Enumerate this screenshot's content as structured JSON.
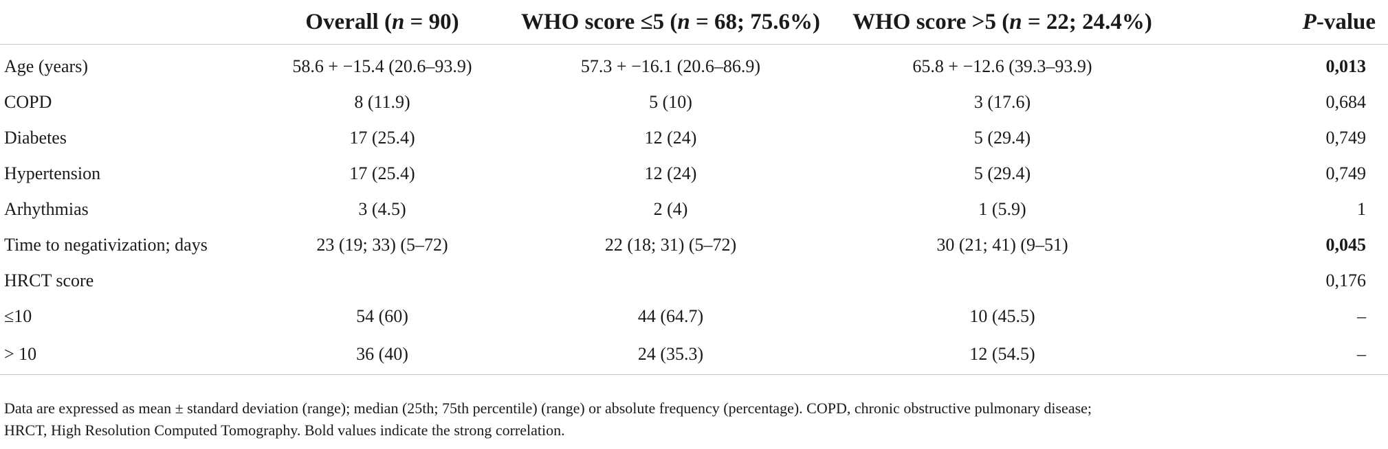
{
  "table": {
    "headers": [
      {
        "pre": "",
        "it": "",
        "post": ""
      },
      {
        "pre": "Overall (",
        "it": "n",
        "post": " = 90)"
      },
      {
        "pre": "WHO score ≤5 (",
        "it": "n",
        "post": " = 68; 75.6%)"
      },
      {
        "pre": "WHO score >5 (",
        "it": "n",
        "post": " = 22; 24.4%)"
      },
      {
        "pre": "",
        "it": "P",
        "post": "-value"
      }
    ],
    "rows": [
      {
        "label": "Age (years)",
        "overall": "58.6 + −15.4 (20.6–93.9)",
        "who_le5": "57.3 + −16.1 (20.6–86.9)",
        "who_gt5": "65.8 + −12.6 (39.3–93.9)",
        "p": "0,013",
        "bold": true
      },
      {
        "label": "COPD",
        "overall": "8 (11.9)",
        "who_le5": "5 (10)",
        "who_gt5": "3 (17.6)",
        "p": "0,684",
        "bold": false
      },
      {
        "label": "Diabetes",
        "overall": "17 (25.4)",
        "who_le5": "12 (24)",
        "who_gt5": "5 (29.4)",
        "p": "0,749",
        "bold": false
      },
      {
        "label": "Hypertension",
        "overall": "17 (25.4)",
        "who_le5": "12 (24)",
        "who_gt5": "5 (29.4)",
        "p": "0,749",
        "bold": false
      },
      {
        "label": "Arhythmias",
        "overall": "3 (4.5)",
        "who_le5": "2 (4)",
        "who_gt5": "1 (5.9)",
        "p": "1",
        "bold": false
      },
      {
        "label": "Time to negativization; days",
        "overall": "23 (19; 33) (5–72)",
        "who_le5": "22 (18; 31) (5–72)",
        "who_gt5": "30 (21; 41) (9–51)",
        "p": "0,045",
        "bold": true
      },
      {
        "label": "HRCT score",
        "overall": "",
        "who_le5": "",
        "who_gt5": "",
        "p": "0,176",
        "bold": false
      },
      {
        "label": "≤10",
        "overall": "54 (60)",
        "who_le5": "44 (64.7)",
        "who_gt5": "10 (45.5)",
        "p": "–",
        "bold": false
      },
      {
        "label": "> 10",
        "overall": "36 (40)",
        "who_le5": "24 (35.3)",
        "who_gt5": "12 (54.5)",
        "p": "–",
        "bold": false
      }
    ]
  },
  "note": {
    "line1": "Data are expressed as mean ± standard deviation (range); median (25th; 75th percentile) (range) or absolute frequency (percentage). COPD, chronic obstructive pulmonary disease;",
    "line2": "HRCT, High Resolution Computed Tomography. Bold values indicate the strong correlation."
  }
}
